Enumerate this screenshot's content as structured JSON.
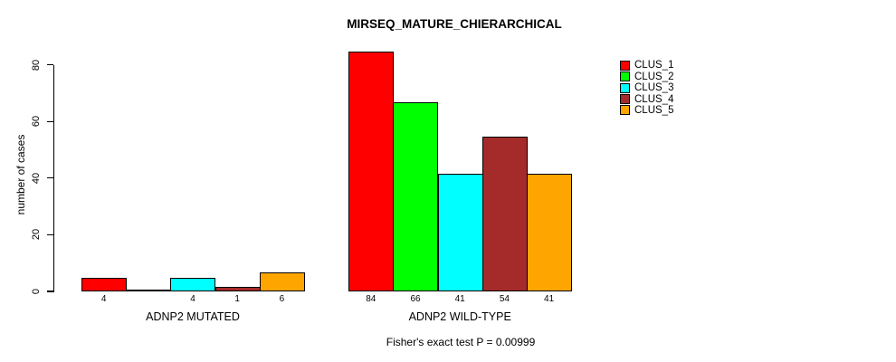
{
  "title": "MIRSEQ_MATURE_CHIERARCHICAL",
  "y_axis": {
    "label": "number of cases",
    "ticks": [
      0,
      20,
      40,
      60,
      80
    ],
    "range": [
      0,
      80
    ]
  },
  "footer": "Fisher's exact test P = 0.00999",
  "legend": {
    "position": "top-right",
    "items": [
      {
        "label": "CLUS_1",
        "color": "#FF0000"
      },
      {
        "label": "CLUS_2",
        "color": "#00FF00"
      },
      {
        "label": "CLUS_3",
        "color": "#00FFFF"
      },
      {
        "label": "CLUS_4",
        "color": "#A52A2A"
      },
      {
        "label": "CLUS_5",
        "color": "#FFA500"
      }
    ]
  },
  "chart_data": {
    "type": "bar",
    "title": "MIRSEQ_MATURE_CHIERARCHICAL",
    "ylabel": "number of cases",
    "xlabel": "",
    "ylim": [
      0,
      80
    ],
    "yticks": [
      0,
      20,
      40,
      60,
      80
    ],
    "grid": false,
    "legend_position": "top-right",
    "series": [
      "CLUS_1",
      "CLUS_2",
      "CLUS_3",
      "CLUS_4",
      "CLUS_5"
    ],
    "series_colors": [
      "#FF0000",
      "#00FF00",
      "#00FFFF",
      "#A52A2A",
      "#FFA500"
    ],
    "groups": [
      {
        "label": "ADNP2 MUTATED",
        "values": [
          4,
          0,
          4,
          1,
          6
        ],
        "bar_labels": [
          "4",
          "",
          "4",
          "1",
          "6"
        ]
      },
      {
        "label": "ADNP2 WILD-TYPE",
        "values": [
          84,
          66,
          41,
          54,
          41
        ],
        "bar_labels": [
          "84",
          "66",
          "41",
          "54",
          "41"
        ]
      }
    ],
    "annotation": "Fisher's exact test P = 0.00999"
  }
}
